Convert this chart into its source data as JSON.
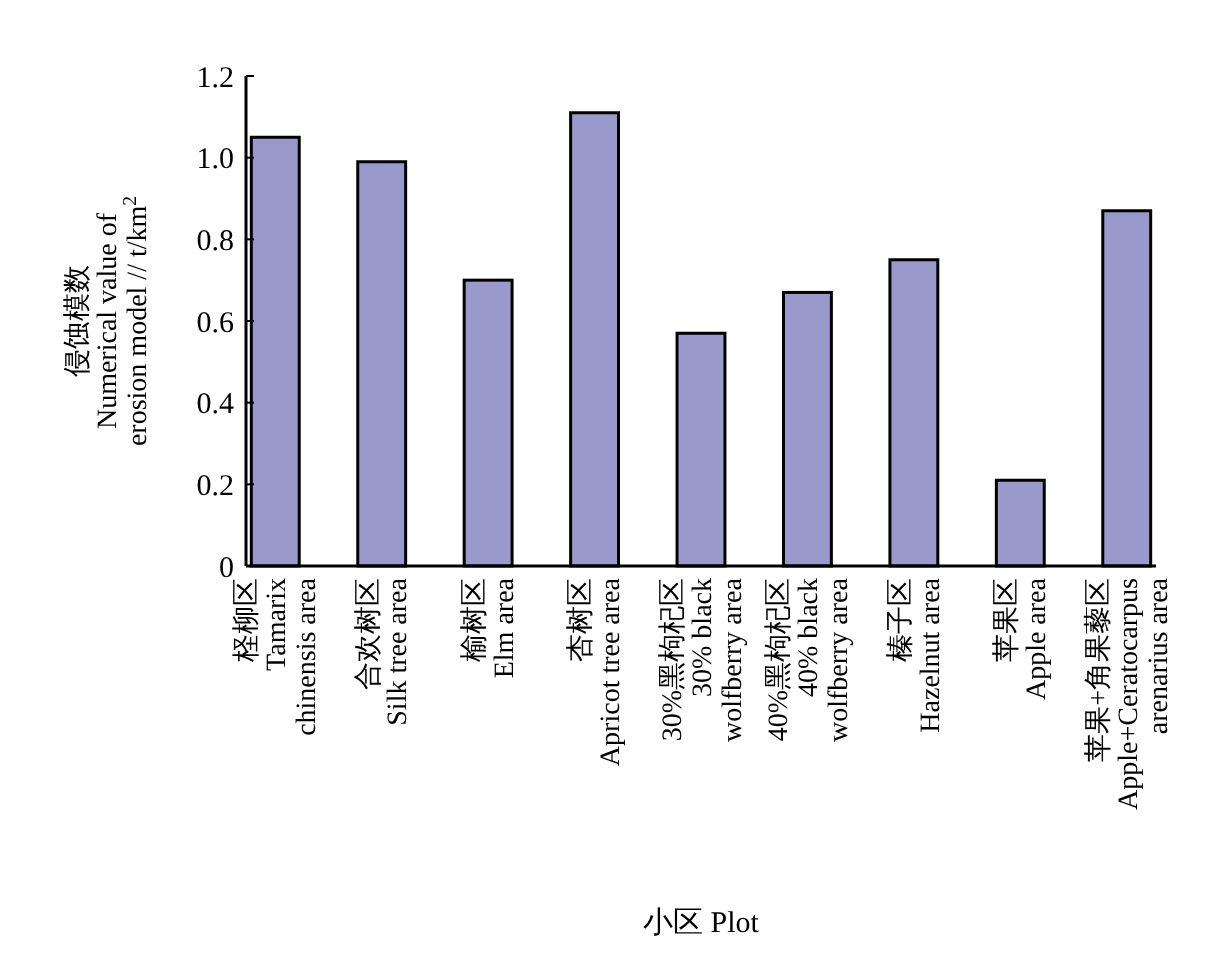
{
  "chart_data": {
    "type": "bar",
    "xlabel": "小区 Plot",
    "ylabel": "侵蚀模数\nNumerical value of\nerosion model // t/km$^{2}$",
    "categories": [
      "柽柳区\nTamarix\nchinensis area",
      "合欢树区\nSilk tree area",
      "榆树区\nElm area",
      "杏树区\nApricot tree area",
      "30%黑枸杞区\n30% black\nwolfberry area",
      "40%黑枸杞区\n40% black\nwolfberry area",
      "榛子区\nHazelnut area",
      "苹果区\nApple area",
      "苹果+角果藜区\nApple+Ceratocarpus\narenarius area"
    ],
    "values": [
      1.05,
      0.99,
      0.7,
      1.11,
      0.57,
      0.67,
      0.75,
      0.21,
      0.87
    ],
    "color": "#9999cc",
    "ylim": [
      0,
      1.2
    ],
    "yticks": [
      0,
      0.2,
      0.4,
      0.6,
      0.8,
      {
        "value": 1,
        "label": "1.0"
      },
      1.2
    ],
    "grid": false
  }
}
